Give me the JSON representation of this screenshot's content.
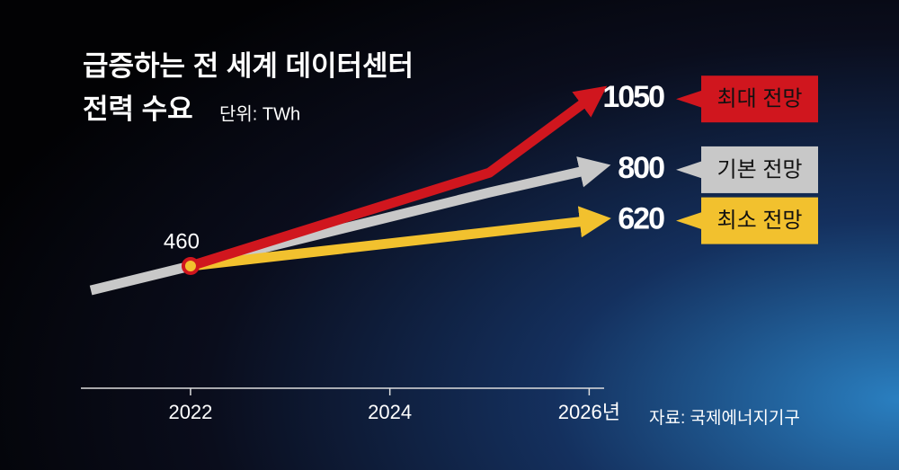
{
  "chart_data": {
    "type": "line",
    "title": [
      "급증하는 전 세계 데이터센터",
      "전력 수요"
    ],
    "unit": "단위: TWh",
    "source": "자료: 국제에너지기구",
    "xlim": [
      2020.9,
      2026.15
    ],
    "ylim": [
      28,
      1400
    ],
    "xticks": [
      2022,
      2024,
      {
        "value": 2026,
        "label": "2026년"
      }
    ],
    "series": [
      {
        "name": "최대 전망",
        "color": "#d0161e",
        "x": [
          2022,
          2025,
          2026
        ],
        "values": [
          460,
          790,
          1050
        ]
      },
      {
        "name": "기본 전망",
        "color": "#c8c8c8",
        "x": [
          2021,
          2022,
          2025,
          2026
        ],
        "values": [
          374,
          460,
          720,
          800
        ]
      },
      {
        "name": "최소 전망",
        "color": "#f2c12e",
        "x": [
          2022,
          2026
        ],
        "values": [
          460,
          620
        ]
      }
    ]
  }
}
